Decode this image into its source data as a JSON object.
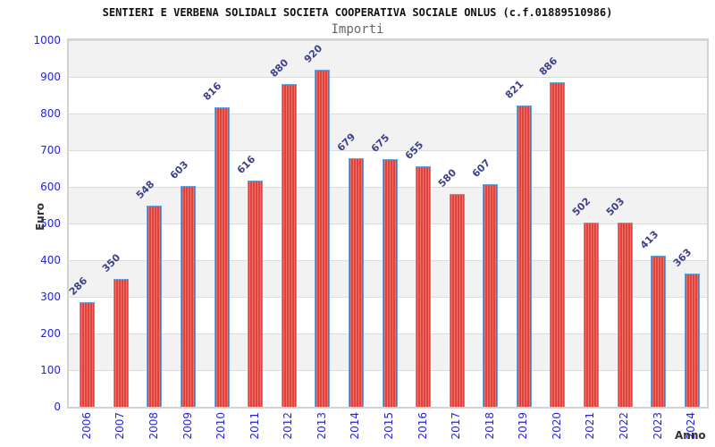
{
  "chart_data": {
    "type": "bar",
    "title": "SENTIERI E VERBENA SOLIDALI SOCIETA COOPERATIVA SOCIALE ONLUS (c.f.01889510986)",
    "subtitle": "Importi",
    "xlabel": "Anno",
    "ylabel": "Euro",
    "categories": [
      "2006",
      "2007",
      "2008",
      "2009",
      "2010",
      "2011",
      "2012",
      "2013",
      "2014",
      "2015",
      "2016",
      "2017",
      "2018",
      "2019",
      "2020",
      "2021",
      "2022",
      "2023",
      "2024"
    ],
    "values": [
      286,
      350,
      548,
      603,
      816,
      616,
      880,
      920,
      679,
      675,
      655,
      580,
      607,
      821,
      886,
      502,
      503,
      413,
      363
    ],
    "ylim": [
      0,
      1000
    ],
    "ytick_step": 100,
    "ytick_labels": [
      "0",
      "100",
      "200",
      "300",
      "400",
      "500",
      "600",
      "700",
      "800",
      "900",
      "1000"
    ],
    "grid": "horizontal, alternating shaded bands",
    "legend": "none",
    "colors": {
      "bar_fill": "#d61e1e",
      "bar_fill_highlight": "#f2897b",
      "bar_border": "#67a2de",
      "tick_label": "#2525d5",
      "value_label": "#3b3f8c",
      "band_shade": "#f2f2f2",
      "grid_line": "#dcdcdc",
      "title_color": "#111111",
      "subtitle_color": "#666666",
      "axis_title_color": "#333333"
    }
  }
}
